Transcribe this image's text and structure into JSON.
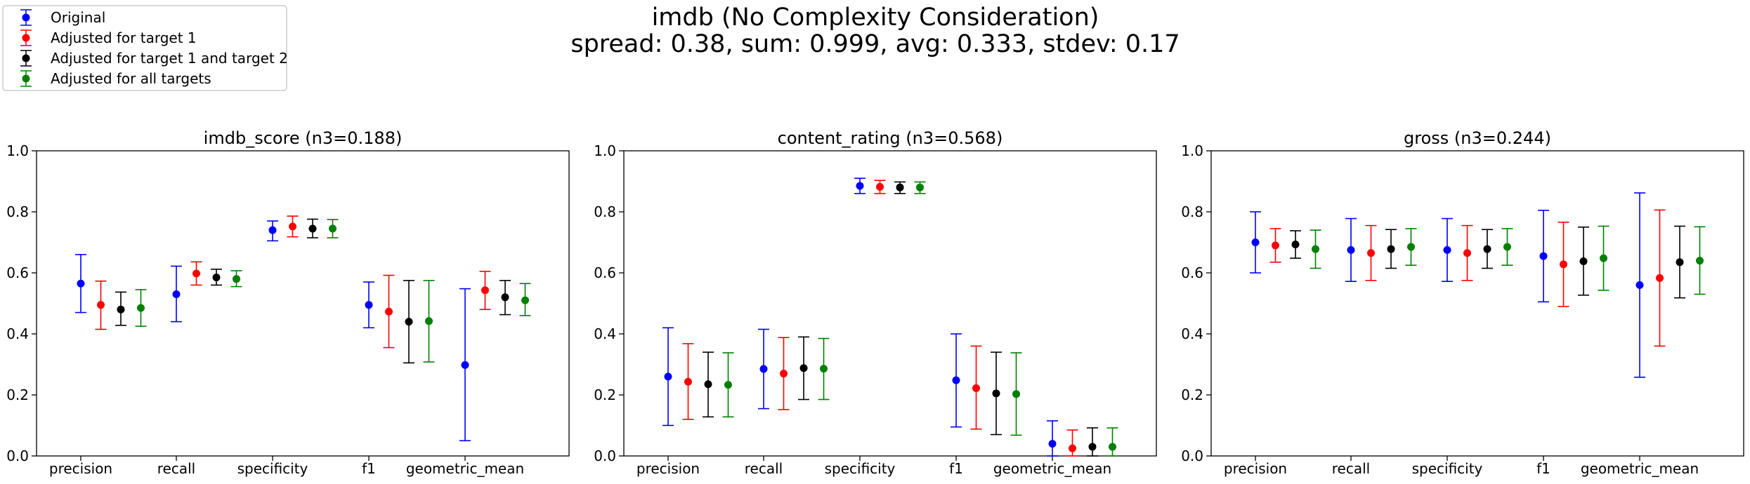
{
  "figure": {
    "title_line1": "imdb (No Complexity Consideration)",
    "title_line2": "spread: 0.38, sum: 0.999, avg: 0.333, stdev: 0.17"
  },
  "legend": {
    "placement": "top-left",
    "entries": [
      {
        "label": "Original",
        "color": "#0000ff"
      },
      {
        "label": "Adjusted for target 1",
        "color": "#ff0000"
      },
      {
        "label": "Adjusted for target 1 and target 2",
        "color": "#000000"
      },
      {
        "label": "Adjusted for all targets",
        "color": "#008000"
      }
    ]
  },
  "chart_data": [
    {
      "type": "scatter",
      "title": "imdb_score (n3=0.188)",
      "categories": [
        "precision",
        "recall",
        "specificity",
        "f1",
        "geometric_mean"
      ],
      "ylim": [
        0,
        1.0
      ],
      "yticks": [
        "0.0",
        "0.2",
        "0.4",
        "0.6",
        "0.8",
        "1.0"
      ],
      "error_bars": true,
      "series": [
        {
          "name": "Original",
          "color": "#0000ff",
          "values": [
            0.565,
            0.53,
            0.74,
            0.495,
            0.298
          ],
          "low": [
            0.47,
            0.44,
            0.705,
            0.42,
            0.05
          ],
          "high": [
            0.66,
            0.622,
            0.77,
            0.57,
            0.548
          ]
        },
        {
          "name": "Adjusted for target 1",
          "color": "#ff0000",
          "values": [
            0.495,
            0.598,
            0.752,
            0.473,
            0.543
          ],
          "low": [
            0.415,
            0.56,
            0.718,
            0.355,
            0.48
          ],
          "high": [
            0.573,
            0.636,
            0.786,
            0.592,
            0.605
          ]
        },
        {
          "name": "Adjusted for target 1 and target 2",
          "color": "#000000",
          "values": [
            0.48,
            0.585,
            0.745,
            0.44,
            0.52
          ],
          "low": [
            0.428,
            0.56,
            0.715,
            0.305,
            0.463
          ],
          "high": [
            0.537,
            0.612,
            0.776,
            0.575,
            0.575
          ]
        },
        {
          "name": "Adjusted for all targets",
          "color": "#008000",
          "values": [
            0.485,
            0.58,
            0.745,
            0.442,
            0.51
          ],
          "low": [
            0.425,
            0.555,
            0.715,
            0.308,
            0.46
          ],
          "high": [
            0.545,
            0.607,
            0.775,
            0.575,
            0.565
          ]
        }
      ]
    },
    {
      "type": "scatter",
      "title": "content_rating (n3=0.568)",
      "categories": [
        "precision",
        "recall",
        "specificity",
        "f1",
        "geometric_mean"
      ],
      "ylim": [
        0,
        1.0
      ],
      "yticks": [
        "0.0",
        "0.2",
        "0.4",
        "0.6",
        "0.8",
        "1.0"
      ],
      "error_bars": true,
      "series": [
        {
          "name": "Original",
          "color": "#0000ff",
          "values": [
            0.26,
            0.285,
            0.885,
            0.248,
            0.04
          ],
          "low": [
            0.1,
            0.155,
            0.86,
            0.095,
            0.0
          ],
          "high": [
            0.42,
            0.415,
            0.91,
            0.4,
            0.115
          ]
        },
        {
          "name": "Adjusted for target 1",
          "color": "#ff0000",
          "values": [
            0.243,
            0.27,
            0.882,
            0.222,
            0.025
          ],
          "low": [
            0.12,
            0.152,
            0.86,
            0.088,
            0.0
          ],
          "high": [
            0.368,
            0.388,
            0.903,
            0.36,
            0.085
          ]
        },
        {
          "name": "Adjusted for target 1 and target 2",
          "color": "#000000",
          "values": [
            0.235,
            0.288,
            0.88,
            0.205,
            0.03
          ],
          "low": [
            0.128,
            0.185,
            0.86,
            0.07,
            0.0
          ],
          "high": [
            0.34,
            0.39,
            0.898,
            0.34,
            0.092
          ]
        },
        {
          "name": "Adjusted for all targets",
          "color": "#008000",
          "values": [
            0.233,
            0.286,
            0.88,
            0.203,
            0.03
          ],
          "low": [
            0.128,
            0.185,
            0.86,
            0.068,
            0.0
          ],
          "high": [
            0.338,
            0.385,
            0.898,
            0.338,
            0.092
          ]
        }
      ]
    },
    {
      "type": "scatter",
      "title": "gross (n3=0.244)",
      "categories": [
        "precision",
        "recall",
        "specificity",
        "f1",
        "geometric_mean"
      ],
      "ylim": [
        0,
        1.0
      ],
      "yticks": [
        "0.0",
        "0.2",
        "0.4",
        "0.6",
        "0.8",
        "1.0"
      ],
      "error_bars": true,
      "series": [
        {
          "name": "Original",
          "color": "#0000ff",
          "values": [
            0.7,
            0.675,
            0.675,
            0.655,
            0.56
          ],
          "low": [
            0.6,
            0.572,
            0.572,
            0.505,
            0.258
          ],
          "high": [
            0.8,
            0.778,
            0.778,
            0.805,
            0.862
          ]
        },
        {
          "name": "Adjusted for target 1",
          "color": "#ff0000",
          "values": [
            0.69,
            0.665,
            0.665,
            0.628,
            0.583
          ],
          "low": [
            0.635,
            0.575,
            0.575,
            0.49,
            0.36
          ],
          "high": [
            0.745,
            0.755,
            0.755,
            0.766,
            0.806
          ]
        },
        {
          "name": "Adjusted for target 1 and target 2",
          "color": "#000000",
          "values": [
            0.693,
            0.678,
            0.678,
            0.638,
            0.635
          ],
          "low": [
            0.648,
            0.615,
            0.615,
            0.527,
            0.518
          ],
          "high": [
            0.738,
            0.742,
            0.742,
            0.75,
            0.753
          ]
        },
        {
          "name": "Adjusted for all targets",
          "color": "#008000",
          "values": [
            0.678,
            0.685,
            0.685,
            0.648,
            0.64
          ],
          "low": [
            0.615,
            0.625,
            0.625,
            0.543,
            0.53
          ],
          "high": [
            0.74,
            0.745,
            0.745,
            0.753,
            0.751
          ]
        }
      ]
    }
  ]
}
